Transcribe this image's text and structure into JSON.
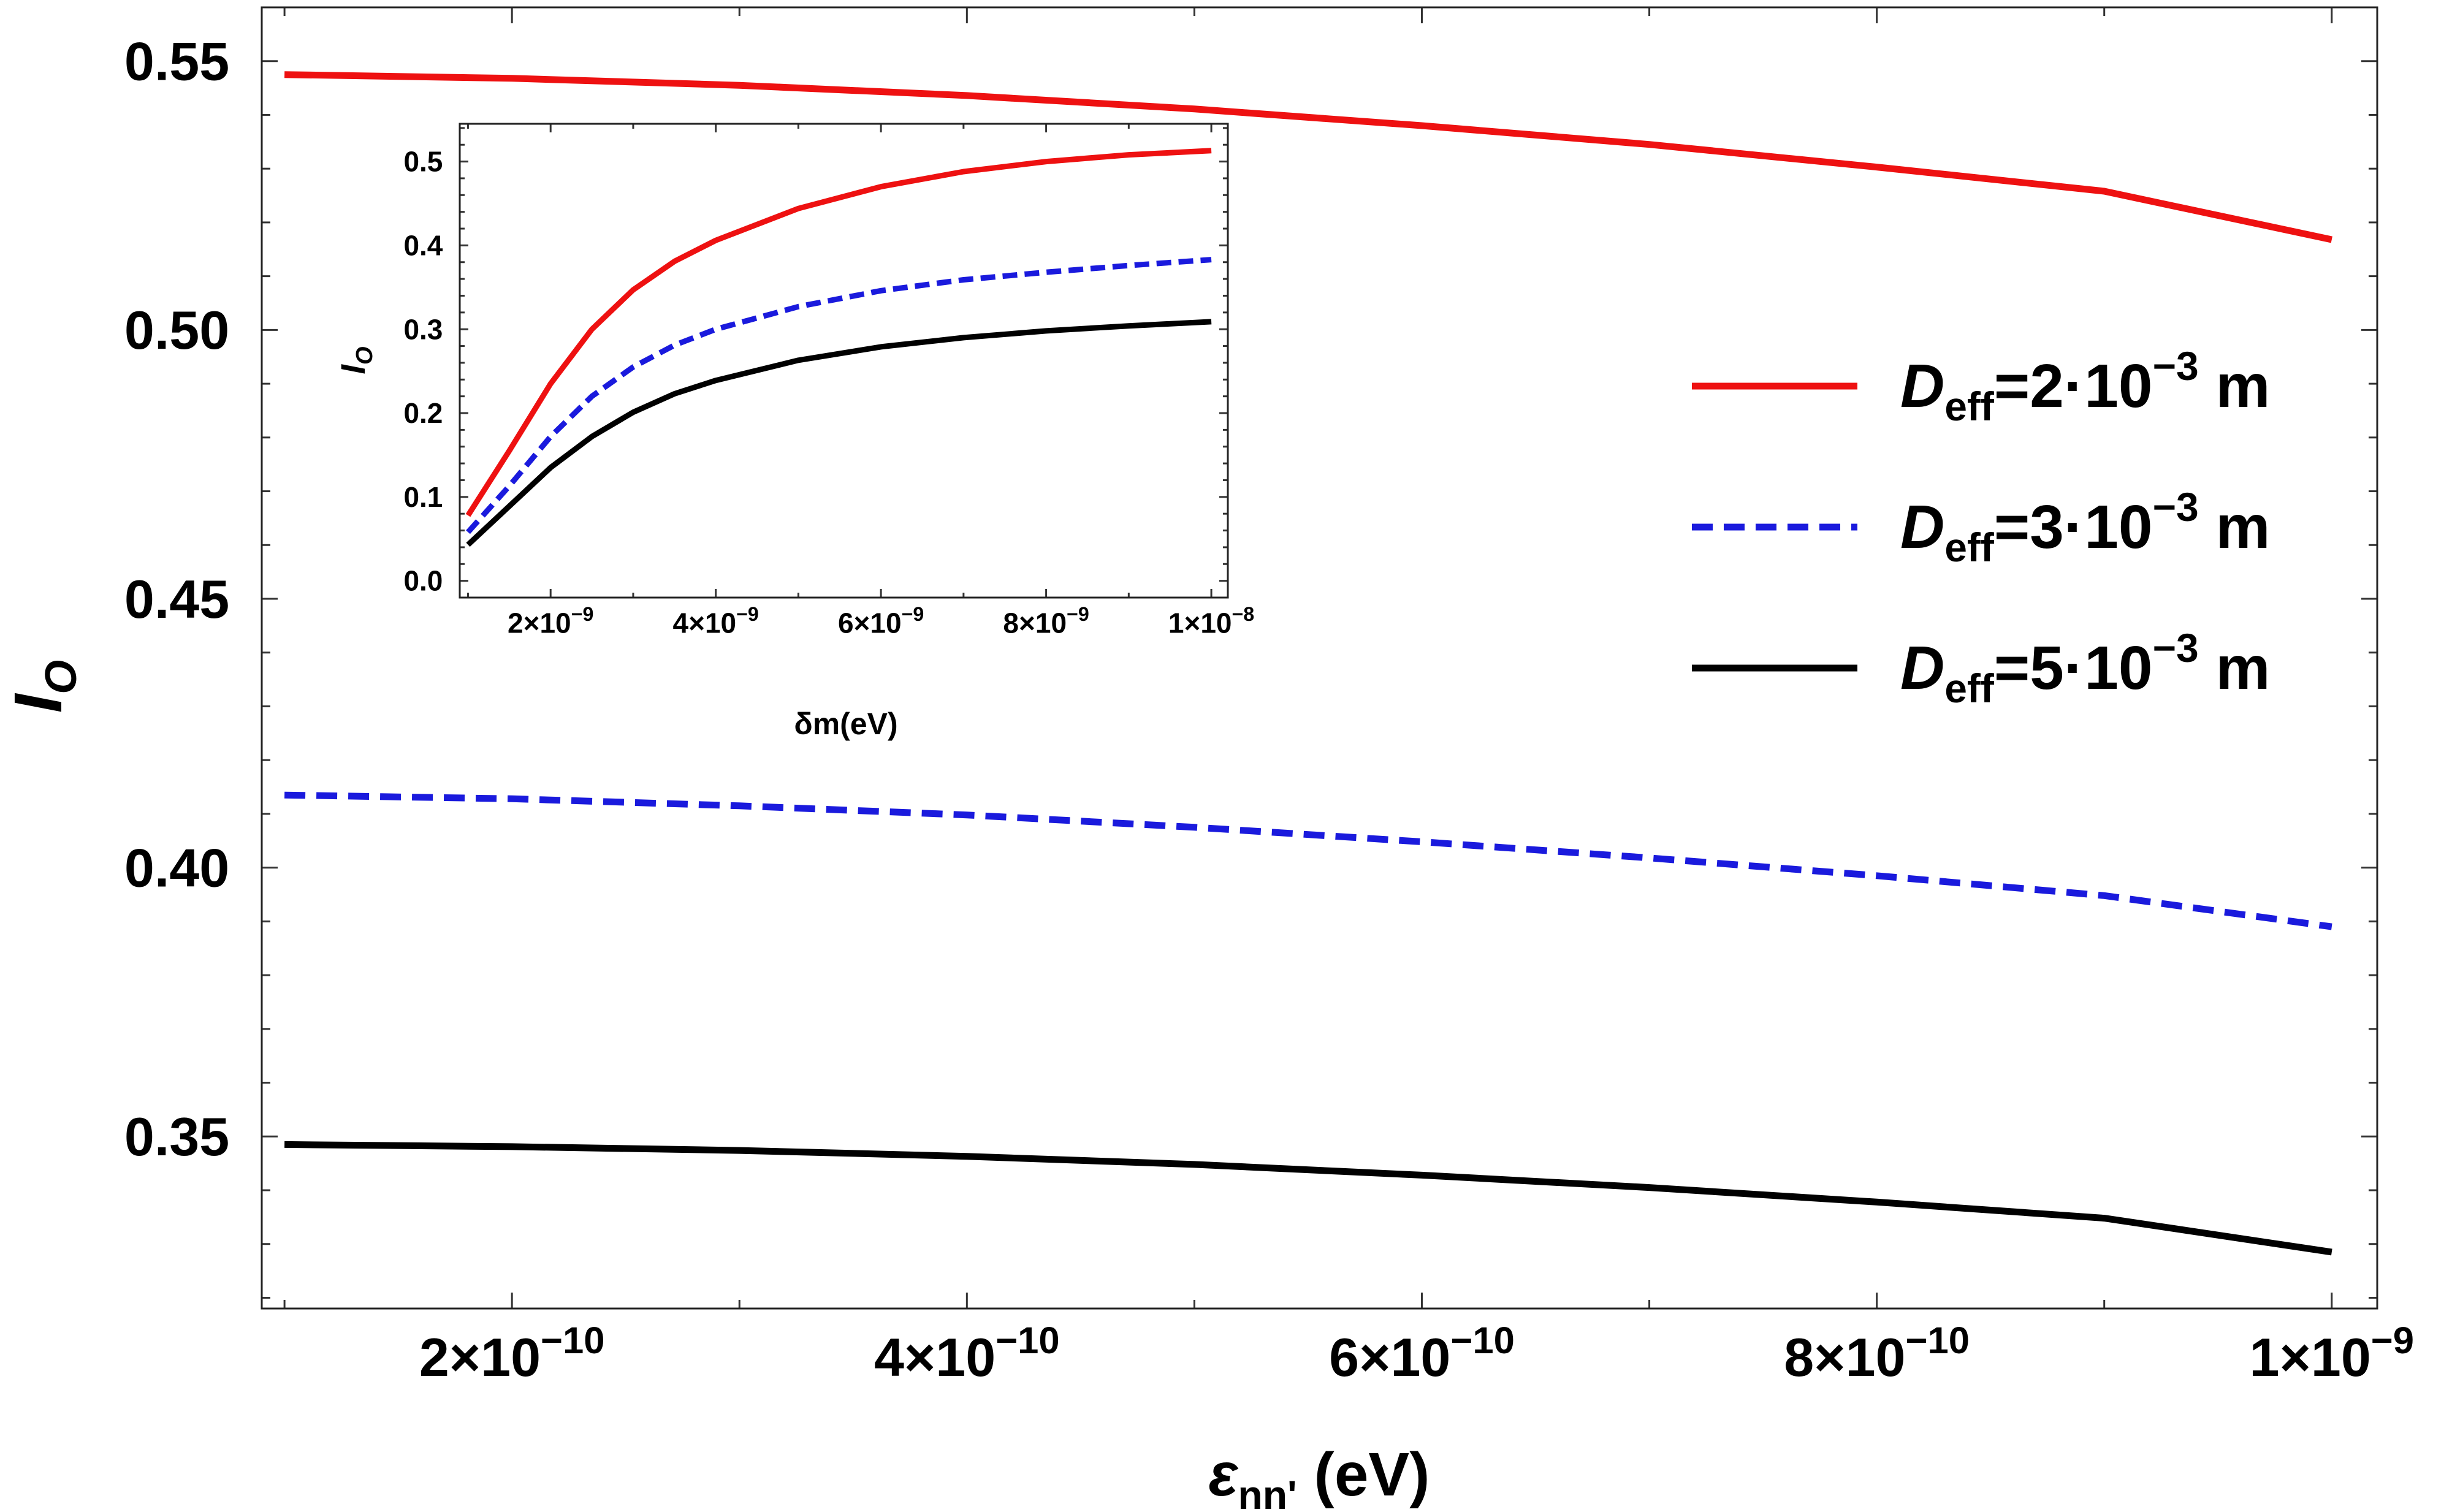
{
  "chart_data": [
    {
      "id": "main",
      "type": "line",
      "title": "",
      "xlabel": "ε",
      "xlabel_sub": "nn'",
      "xlabel_unit": "(eV)",
      "ylabel": "I",
      "ylabel_sub": "O",
      "xlim": [
        9e-11,
        1.02e-09
      ],
      "ylim": [
        0.318,
        0.56
      ],
      "xticks": [
        {
          "v": 2e-10,
          "mant": "2",
          "exp": "−10"
        },
        {
          "v": 4e-10,
          "mant": "4",
          "exp": "−10"
        },
        {
          "v": 6e-10,
          "mant": "6",
          "exp": "−10"
        },
        {
          "v": 8e-10,
          "mant": "8",
          "exp": "−10"
        },
        {
          "v": 1e-09,
          "mant": "1",
          "exp": "−9"
        }
      ],
      "yticks": [
        {
          "v": 0.35,
          "label": "0.35"
        },
        {
          "v": 0.4,
          "label": "0.40"
        },
        {
          "v": 0.45,
          "label": "0.45"
        },
        {
          "v": 0.5,
          "label": "0.50"
        },
        {
          "v": 0.55,
          "label": "0.55"
        }
      ],
      "series": [
        {
          "name": "D_eff=2·10^-3 m",
          "color": "#ee1111",
          "dash": "solid",
          "x": [
            1e-10,
            2e-10,
            3e-10,
            4e-10,
            5e-10,
            6e-10,
            7e-10,
            8e-10,
            9e-10,
            1e-09
          ],
          "y": [
            0.5475,
            0.5468,
            0.5455,
            0.5436,
            0.5411,
            0.538,
            0.5345,
            0.5303,
            0.5258,
            0.5168
          ]
        },
        {
          "name": "D_eff=3·10^-3 m",
          "color": "#1a1add",
          "dash": "dashed",
          "x": [
            1e-10,
            2e-10,
            3e-10,
            4e-10,
            5e-10,
            6e-10,
            7e-10,
            8e-10,
            9e-10,
            1e-09
          ],
          "y": [
            0.4135,
            0.4128,
            0.4115,
            0.4098,
            0.4075,
            0.4048,
            0.4018,
            0.3985,
            0.3948,
            0.389
          ]
        },
        {
          "name": "D_eff=5·10^-3 m",
          "color": "#000000",
          "dash": "solid",
          "x": [
            1e-10,
            2e-10,
            3e-10,
            4e-10,
            5e-10,
            6e-10,
            7e-10,
            8e-10,
            9e-10,
            1e-09
          ],
          "y": [
            0.3485,
            0.3481,
            0.3474,
            0.3463,
            0.3448,
            0.3428,
            0.3405,
            0.3378,
            0.3348,
            0.3285
          ]
        }
      ]
    },
    {
      "id": "inset",
      "type": "line",
      "title": "",
      "xlabel": "δm(eV)",
      "ylabel": "I",
      "ylabel_sub": "O",
      "xlim": [
        9e-10,
        1.02e-08
      ],
      "ylim": [
        -0.02,
        0.545
      ],
      "xticks": [
        {
          "v": 2e-09,
          "mant": "2",
          "exp": "−9"
        },
        {
          "v": 4e-09,
          "mant": "4",
          "exp": "−9"
        },
        {
          "v": 6e-09,
          "mant": "6",
          "exp": "−9"
        },
        {
          "v": 8e-09,
          "mant": "8",
          "exp": "−9"
        },
        {
          "v": 1e-08,
          "mant": "1",
          "exp": "−8"
        }
      ],
      "yticks": [
        {
          "v": 0.0,
          "label": "0.0"
        },
        {
          "v": 0.1,
          "label": "0.1"
        },
        {
          "v": 0.2,
          "label": "0.2"
        },
        {
          "v": 0.3,
          "label": "0.3"
        },
        {
          "v": 0.4,
          "label": "0.4"
        },
        {
          "v": 0.5,
          "label": "0.5"
        }
      ],
      "series": [
        {
          "name": "D_eff=2·10^-3 m",
          "color": "#ee1111",
          "dash": "solid",
          "x": [
            1e-09,
            1.5e-09,
            2e-09,
            2.5e-09,
            3e-09,
            3.5e-09,
            4e-09,
            5e-09,
            6e-09,
            7e-09,
            8e-09,
            9e-09,
            1e-08
          ],
          "y": [
            0.078,
            0.155,
            0.235,
            0.3,
            0.347,
            0.381,
            0.406,
            0.444,
            0.47,
            0.488,
            0.5,
            0.508,
            0.513
          ]
        },
        {
          "name": "D_eff=3·10^-3 m",
          "color": "#1a1add",
          "dash": "dashed",
          "x": [
            1e-09,
            1.5e-09,
            2e-09,
            2.5e-09,
            3e-09,
            3.5e-09,
            4e-09,
            5e-09,
            6e-09,
            7e-09,
            8e-09,
            9e-09,
            1e-08
          ],
          "y": [
            0.058,
            0.113,
            0.172,
            0.22,
            0.255,
            0.281,
            0.3,
            0.327,
            0.346,
            0.359,
            0.368,
            0.376,
            0.383
          ]
        },
        {
          "name": "D_eff=5·10^-3 m",
          "color": "#000000",
          "dash": "solid",
          "x": [
            1e-09,
            1.5e-09,
            2e-09,
            2.5e-09,
            3e-09,
            3.5e-09,
            4e-09,
            5e-09,
            6e-09,
            7e-09,
            8e-09,
            9e-09,
            1e-08
          ],
          "y": [
            0.043,
            0.089,
            0.135,
            0.172,
            0.201,
            0.223,
            0.239,
            0.263,
            0.279,
            0.29,
            0.298,
            0.304,
            0.309
          ]
        }
      ]
    }
  ],
  "legend": {
    "position": "right",
    "items": [
      {
        "prefix": "D",
        "sub": "eff",
        "value": "=2·10",
        "exp": "−3",
        "unit": " m",
        "color": "#ee1111",
        "dash": "solid"
      },
      {
        "prefix": "D",
        "sub": "eff",
        "value": "=3·10",
        "exp": "−3",
        "unit": " m",
        "color": "#1a1add",
        "dash": "dashed"
      },
      {
        "prefix": "D",
        "sub": "eff",
        "value": "=5·10",
        "exp": "−3",
        "unit": " m",
        "color": "#000000",
        "dash": "solid"
      }
    ]
  }
}
